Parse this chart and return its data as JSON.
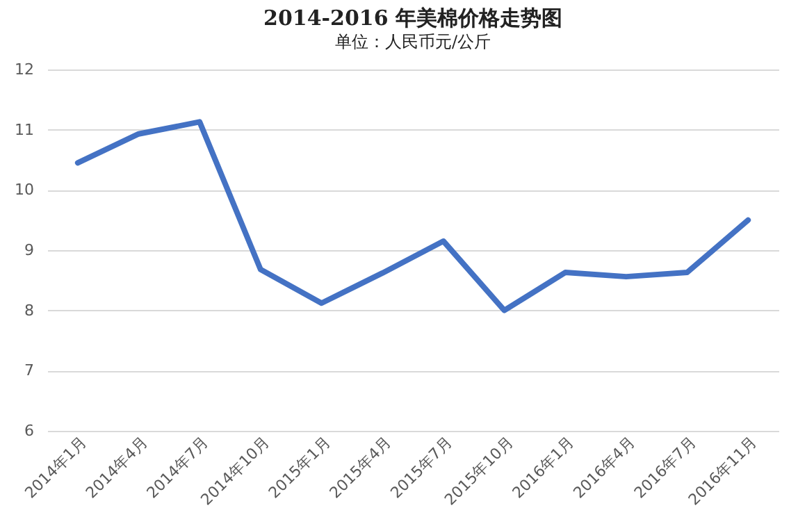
{
  "chart_data": {
    "type": "line",
    "title": "2014-2016 年美棉价格走势图",
    "subtitle": "单位：人民币元/公斤",
    "categories": [
      "2014年1月",
      "2014年4月",
      "2014年7月",
      "2014年10月",
      "2015年1月",
      "2015年4月",
      "2015年7月",
      "2015年10月",
      "2016年1月",
      "2016年4月",
      "2016年7月",
      "2016年11月"
    ],
    "series": [
      {
        "color": "#4472c4",
        "values": [
          10.45,
          10.93,
          11.13,
          8.68,
          8.12,
          8.62,
          9.15,
          8.0,
          8.63,
          8.56,
          8.63,
          9.5
        ]
      }
    ],
    "ylim": [
      6,
      12
    ],
    "yticks": [
      6,
      7,
      8,
      9,
      10,
      11,
      12
    ],
    "grid": "y",
    "marker": "none",
    "line_style": "solid"
  }
}
